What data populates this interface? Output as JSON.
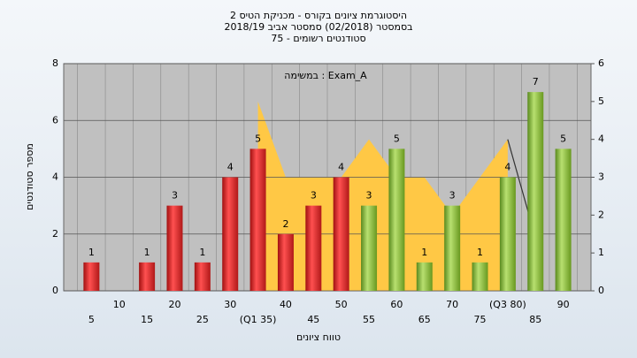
{
  "chart_data": {
    "type": "bar",
    "title": [
      "היסטוגרמת ציונים בקורס - מכניקת הטיס 2",
      "בסמסטר (02/2018) סמסטר אביב 2018/19",
      "סטודנטים רשומים - 75"
    ],
    "annotation": "במשימה : Exam_A",
    "y_label": "מספר סטודנטים",
    "x_label": "טווח ציונים",
    "categories": [
      "5",
      "10",
      "15",
      "20",
      "25",
      "30",
      "(Q1 35)",
      "40",
      "45",
      "50",
      "55",
      "60",
      "65",
      "70",
      "75",
      "(Q3 80)",
      "85",
      "90"
    ],
    "series": [
      {
        "color": "#e03030",
        "values": [
          1,
          null,
          1,
          3,
          1,
          4,
          5,
          2,
          3,
          4,
          null,
          null,
          null,
          null,
          null,
          null,
          null,
          null
        ]
      },
      {
        "color": "#8cc63f",
        "values": [
          null,
          null,
          null,
          null,
          null,
          null,
          null,
          null,
          null,
          null,
          3,
          5,
          1,
          3,
          1,
          4,
          7,
          5
        ]
      },
      {
        "color": "#ffc845",
        "axis": "y2",
        "type": "area",
        "values": [
          null,
          null,
          null,
          null,
          null,
          null,
          5,
          3,
          3,
          3,
          4,
          3,
          3,
          2,
          3,
          4,
          null,
          null
        ]
      },
      {
        "color": "#333333",
        "axis": "y2",
        "type": "line",
        "values": [
          null,
          null,
          null,
          null,
          null,
          null,
          null,
          null,
          null,
          null,
          null,
          null,
          null,
          null,
          null,
          4,
          1.4,
          null
        ]
      }
    ],
    "ylim": [
      0,
      8
    ],
    "yticks": [
      0,
      2,
      4,
      6,
      8
    ],
    "y2lim": [
      0,
      6
    ],
    "y2ticks": [
      0,
      1,
      2,
      3,
      4,
      5,
      6
    ],
    "grid": true
  }
}
